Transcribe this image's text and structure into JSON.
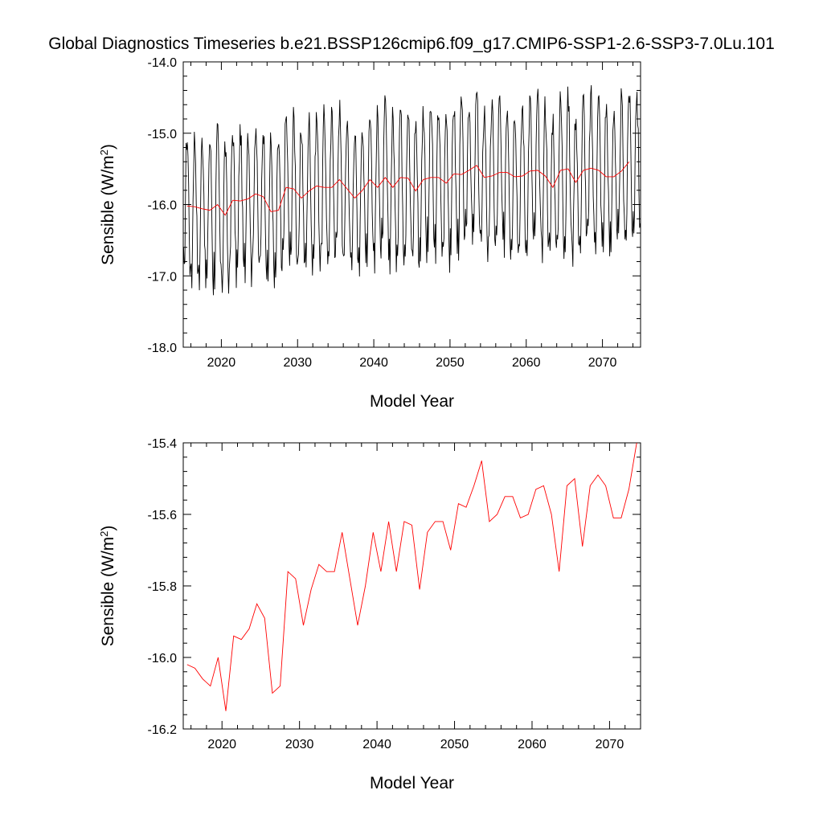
{
  "title": "Global Diagnostics Timeseries b.e21.BSSP126cmip6.f09_g17.CMIP6-SSP1-2.6-SSP3-7.0Lu.101",
  "chart_data": [
    {
      "type": "line",
      "xlabel": "Model Year",
      "ylabel": "Sensible (W/m2)",
      "ylabel_text": "Sensible (W/m",
      "ylabel_sup": "2",
      "ylabel_close": ")",
      "xlim": [
        2015,
        2075
      ],
      "ylim": [
        -18.0,
        -14.0
      ],
      "xticks": [
        2020,
        2030,
        2040,
        2050,
        2060,
        2070
      ],
      "xtick_labels": [
        "2020",
        "2030",
        "2040",
        "2050",
        "2060",
        "2070"
      ],
      "yticks": [
        -18.0,
        -17.0,
        -16.0,
        -15.0,
        -14.0
      ],
      "ytick_labels": [
        "-18.0",
        "-17.0",
        "-16.0",
        "-15.0",
        "-14.0"
      ],
      "grid": false,
      "series": [
        {
          "style": "monthly",
          "color": "#000000",
          "x_start": 2015.04,
          "x_step": 0.08333,
          "monthly_cycle": [
            -16.75,
            -17.0,
            -16.6,
            -15.8,
            -15.3,
            -15.05,
            -15.05,
            -15.3,
            -15.75,
            -16.3,
            -16.8,
            -17.05
          ],
          "note_values": "monthly values reconstructed as seasonal cycle around annual means"
        },
        {
          "style": "annual",
          "color": "#ff0000",
          "x": [
            2015.5,
            2016.5,
            2017.5,
            2018.5,
            2019.5,
            2020.5,
            2021.5,
            2022.5,
            2023.5,
            2024.5,
            2025.5,
            2026.5,
            2027.5,
            2028.5,
            2029.5,
            2030.5,
            2031.5,
            2032.5,
            2033.5,
            2034.5,
            2035.5,
            2036.5,
            2037.5,
            2038.5,
            2039.5,
            2040.5,
            2041.5,
            2042.5,
            2043.5,
            2044.5,
            2045.5,
            2046.5,
            2047.5,
            2048.5,
            2049.5,
            2050.5,
            2051.5,
            2052.5,
            2053.5,
            2054.5,
            2055.5,
            2056.5,
            2057.5,
            2058.5,
            2059.5,
            2060.5,
            2061.5,
            2062.5,
            2063.5,
            2064.5,
            2065.5,
            2066.5,
            2067.5,
            2068.5,
            2069.5,
            2070.5,
            2071.5,
            2072.5,
            2073.5
          ],
          "y": [
            -16.02,
            -16.03,
            -16.06,
            -16.08,
            -16.0,
            -16.15,
            -15.94,
            -15.95,
            -15.92,
            -15.85,
            -15.89,
            -16.1,
            -16.08,
            -15.76,
            -15.78,
            -15.91,
            -15.81,
            -15.74,
            -15.76,
            -15.76,
            -15.65,
            -15.78,
            -15.91,
            -15.8,
            -15.65,
            -15.76,
            -15.62,
            -15.76,
            -15.62,
            -15.63,
            -15.81,
            -15.65,
            -15.62,
            -15.62,
            -15.7,
            -15.57,
            -15.58,
            -15.52,
            -15.45,
            -15.62,
            -15.6,
            -15.55,
            -15.55,
            -15.61,
            -15.6,
            -15.53,
            -15.52,
            -15.6,
            -15.76,
            -15.52,
            -15.5,
            -15.69,
            -15.52,
            -15.49,
            -15.52,
            -15.61,
            -15.61,
            -15.53,
            -15.4
          ]
        }
      ]
    },
    {
      "type": "line",
      "xlabel": "Model Year",
      "ylabel": "Sensible (W/m2)",
      "ylabel_text": "Sensible (W/m",
      "ylabel_sup": "2",
      "ylabel_close": ")",
      "xlim": [
        2015,
        2074
      ],
      "ylim": [
        -16.2,
        -15.4
      ],
      "xticks": [
        2020,
        2030,
        2040,
        2050,
        2060,
        2070
      ],
      "xtick_labels": [
        "2020",
        "2030",
        "2040",
        "2050",
        "2060",
        "2070"
      ],
      "yticks": [
        -16.2,
        -16.0,
        -15.8,
        -15.6,
        -15.4
      ],
      "ytick_labels": [
        "-16.2",
        "-16.0",
        "-15.8",
        "-15.6",
        "-15.4"
      ],
      "grid": false,
      "series": [
        {
          "style": "annual",
          "color": "#ff0000",
          "x": [
            2015.5,
            2016.5,
            2017.5,
            2018.5,
            2019.5,
            2020.5,
            2021.5,
            2022.5,
            2023.5,
            2024.5,
            2025.5,
            2026.5,
            2027.5,
            2028.5,
            2029.5,
            2030.5,
            2031.5,
            2032.5,
            2033.5,
            2034.5,
            2035.5,
            2036.5,
            2037.5,
            2038.5,
            2039.5,
            2040.5,
            2041.5,
            2042.5,
            2043.5,
            2044.5,
            2045.5,
            2046.5,
            2047.5,
            2048.5,
            2049.5,
            2050.5,
            2051.5,
            2052.5,
            2053.5,
            2054.5,
            2055.5,
            2056.5,
            2057.5,
            2058.5,
            2059.5,
            2060.5,
            2061.5,
            2062.5,
            2063.5,
            2064.5,
            2065.5,
            2066.5,
            2067.5,
            2068.5,
            2069.5,
            2070.5,
            2071.5,
            2072.5,
            2073.5
          ],
          "y": [
            -16.02,
            -16.03,
            -16.06,
            -16.08,
            -16.0,
            -16.15,
            -15.94,
            -15.95,
            -15.92,
            -15.85,
            -15.89,
            -16.1,
            -16.08,
            -15.76,
            -15.78,
            -15.91,
            -15.81,
            -15.74,
            -15.76,
            -15.76,
            -15.65,
            -15.78,
            -15.91,
            -15.8,
            -15.65,
            -15.76,
            -15.62,
            -15.76,
            -15.62,
            -15.63,
            -15.81,
            -15.65,
            -15.62,
            -15.62,
            -15.7,
            -15.57,
            -15.58,
            -15.52,
            -15.45,
            -15.62,
            -15.6,
            -15.55,
            -15.55,
            -15.61,
            -15.6,
            -15.53,
            -15.52,
            -15.6,
            -15.76,
            -15.52,
            -15.5,
            -15.69,
            -15.52,
            -15.49,
            -15.52,
            -15.61,
            -15.61,
            -15.53,
            -15.4
          ]
        }
      ]
    }
  ]
}
